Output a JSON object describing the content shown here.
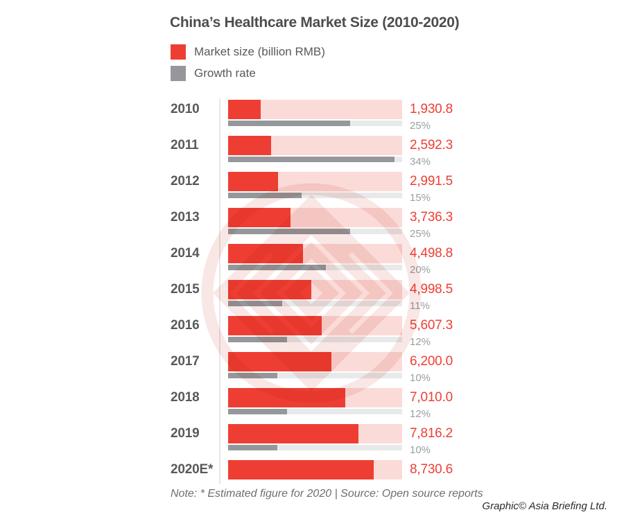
{
  "title": "China’s Healthcare Market Size (2010-2020)",
  "legend": {
    "items": [
      {
        "label": "Market size (billion RMB)",
        "color": "#ee3e33"
      },
      {
        "label": "Growth rate",
        "color": "#95979a"
      }
    ]
  },
  "chart_data": {
    "type": "bar",
    "orientation": "horizontal",
    "title": "China’s Healthcare Market Size (2010-2020)",
    "categories": [
      "2010",
      "2011",
      "2012",
      "2013",
      "2014",
      "2015",
      "2016",
      "2017",
      "2018",
      "2019",
      "2020E*"
    ],
    "series": [
      {
        "name": "Market size (billion RMB)",
        "values": [
          1930.8,
          2592.3,
          2991.5,
          3736.3,
          4498.8,
          4998.5,
          5607.3,
          6200.0,
          7010.0,
          7816.2,
          8730.6
        ],
        "labels": [
          "1,930.8",
          "2,592.3",
          "2,991.5",
          "3,736.3",
          "4,498.8",
          "4,998.5",
          "5,607.3",
          "6,200.0",
          "7,010.0",
          "7,816.2",
          "8,730.6"
        ],
        "color": "#ee3e33",
        "track_color": "#fbdbd7",
        "axis_max": 10420
      },
      {
        "name": "Growth rate",
        "values": [
          25,
          34,
          15,
          25,
          20,
          11,
          12,
          10,
          12,
          10,
          null
        ],
        "labels": [
          "25%",
          "34%",
          "15%",
          "25%",
          "20%",
          "11%",
          "12%",
          "10%",
          "12%",
          "10%",
          ""
        ],
        "color": "#95979a",
        "track_color": "#e8e9ea",
        "axis_max": 35.6
      }
    ],
    "grid": false,
    "legend_position": "top-left",
    "value_labels_position": "right"
  },
  "footer": {
    "note": "Note: * Estimated figure for 2020 | Source: Open source reports",
    "credit": "Graphic© Asia Briefing Ltd."
  },
  "colors": {
    "market_bar": "#ee3e33",
    "market_track": "#fbdbd7",
    "growth_bar": "#95979a",
    "growth_track": "#e8e9ea",
    "title_text": "#4c4d4f",
    "year_text": "#58595b",
    "value_text": "#ee3e33",
    "percent_text": "#9b9da0",
    "note_text": "#6d6e71",
    "watermark": "#f3d3cf"
  }
}
